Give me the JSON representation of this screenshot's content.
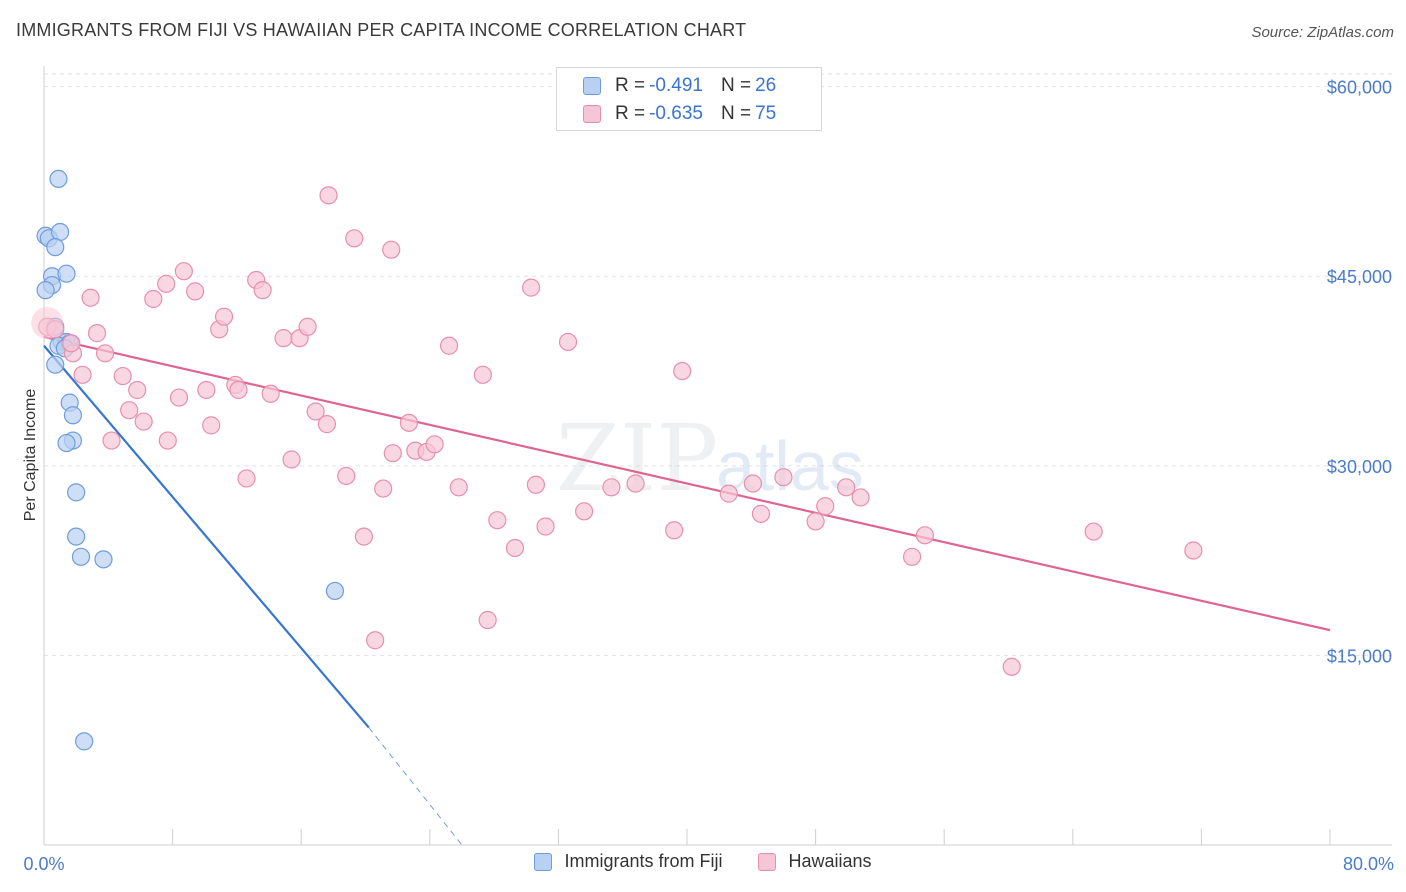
{
  "header": {
    "title": "IMMIGRANTS FROM FIJI VS HAWAIIAN PER CAPITA INCOME CORRELATION CHART",
    "source": "Source: ZipAtlas.com"
  },
  "legend_top": {
    "rows": [
      {
        "r_label": "R =",
        "r_value": "-0.491",
        "n_label": "N =",
        "n_value": "26"
      },
      {
        "r_label": "R =",
        "r_value": "-0.635",
        "n_label": "N =",
        "n_value": "75"
      }
    ]
  },
  "legend_bottom": {
    "items": [
      "Immigrants from Fiji",
      "Hawaiians"
    ]
  },
  "colors": {
    "fiji_fill": "#b8d0f2",
    "fiji_stroke": "#6f9ddc",
    "fiji_line": "#3676d1",
    "hawaii_fill": "#f7c6d6",
    "hawaii_stroke": "#e88fae",
    "hawaii_line": "#e0658e",
    "grid": "#e2e2e2",
    "tick_text": "#4a7cc9"
  },
  "chart_data": {
    "type": "scatter",
    "title": "IMMIGRANTS FROM FIJI VS HAWAIIAN PER CAPITA INCOME CORRELATION CHART",
    "xlabel": "",
    "ylabel": "Per Capita Income",
    "xlim": [
      0,
      80
    ],
    "ylim": [
      0,
      61000
    ],
    "x_tick_labels": [
      "0.0%",
      "80.0%"
    ],
    "y_ticks": [
      15000,
      30000,
      45000,
      60000
    ],
    "y_tick_labels": [
      "$15,000",
      "$30,000",
      "$45,000",
      "$60,000"
    ],
    "grid": true,
    "legend_position": "top-center",
    "watermark": "ZIPatlas",
    "series": [
      {
        "name": "Immigrants from Fiji",
        "r": -0.491,
        "n": 26,
        "points": [
          [
            0.9,
            52700
          ],
          [
            0.1,
            48200
          ],
          [
            0.3,
            48000
          ],
          [
            1.0,
            48500
          ],
          [
            0.7,
            47300
          ],
          [
            0.5,
            45000
          ],
          [
            1.4,
            45200
          ],
          [
            0.5,
            44300
          ],
          [
            0.1,
            43900
          ],
          [
            0.7,
            41000
          ],
          [
            1.1,
            39800
          ],
          [
            1.4,
            39800
          ],
          [
            0.9,
            39500
          ],
          [
            1.6,
            39700
          ],
          [
            1.3,
            39300
          ],
          [
            0.7,
            38000
          ],
          [
            1.6,
            35000
          ],
          [
            1.8,
            34000
          ],
          [
            1.8,
            32000
          ],
          [
            1.4,
            31800
          ],
          [
            2.0,
            27900
          ],
          [
            2.0,
            24400
          ],
          [
            2.3,
            22800
          ],
          [
            3.7,
            22600
          ],
          [
            18.1,
            20100
          ],
          [
            2.5,
            8200
          ]
        ],
        "trend": {
          "x": [
            0,
            20.2
          ],
          "y": [
            39500,
            9300
          ]
        },
        "trend_extension": {
          "x": [
            20.2,
            26.0
          ],
          "y": [
            9300,
            0
          ]
        }
      },
      {
        "name": "Hawaiians",
        "r": -0.635,
        "n": 75,
        "points": [
          [
            0.2,
            41000
          ],
          [
            0.7,
            40800
          ],
          [
            1.8,
            38900
          ],
          [
            1.7,
            39700
          ],
          [
            2.4,
            37200
          ],
          [
            3.3,
            40500
          ],
          [
            3.8,
            38900
          ],
          [
            2.9,
            43300
          ],
          [
            4.2,
            32000
          ],
          [
            4.9,
            37100
          ],
          [
            5.3,
            34400
          ],
          [
            5.8,
            36000
          ],
          [
            6.2,
            33500
          ],
          [
            6.8,
            43200
          ],
          [
            7.6,
            44400
          ],
          [
            7.7,
            32000
          ],
          [
            8.4,
            35400
          ],
          [
            8.7,
            45400
          ],
          [
            9.4,
            43800
          ],
          [
            10.1,
            36000
          ],
          [
            10.4,
            33200
          ],
          [
            10.9,
            40800
          ],
          [
            11.2,
            41800
          ],
          [
            11.9,
            36400
          ],
          [
            12.1,
            36000
          ],
          [
            12.6,
            29000
          ],
          [
            13.2,
            44700
          ],
          [
            13.6,
            43900
          ],
          [
            14.1,
            35700
          ],
          [
            14.9,
            40100
          ],
          [
            15.4,
            30500
          ],
          [
            15.9,
            40100
          ],
          [
            16.4,
            41000
          ],
          [
            16.9,
            34300
          ],
          [
            17.6,
            33300
          ],
          [
            17.7,
            51400
          ],
          [
            18.8,
            29200
          ],
          [
            19.3,
            48000
          ],
          [
            19.9,
            24400
          ],
          [
            20.6,
            16200
          ],
          [
            21.1,
            28200
          ],
          [
            21.6,
            47100
          ],
          [
            21.7,
            31000
          ],
          [
            22.7,
            33400
          ],
          [
            23.1,
            31200
          ],
          [
            23.8,
            31100
          ],
          [
            24.3,
            31700
          ],
          [
            25.2,
            39500
          ],
          [
            25.8,
            28300
          ],
          [
            27.3,
            37200
          ],
          [
            27.6,
            17800
          ],
          [
            28.2,
            25700
          ],
          [
            29.3,
            23500
          ],
          [
            30.3,
            44100
          ],
          [
            30.6,
            28500
          ],
          [
            31.2,
            25200
          ],
          [
            32.6,
            39800
          ],
          [
            33.6,
            26400
          ],
          [
            35.3,
            28300
          ],
          [
            36.8,
            28600
          ],
          [
            39.2,
            24900
          ],
          [
            39.7,
            37500
          ],
          [
            42.6,
            27800
          ],
          [
            44.1,
            28600
          ],
          [
            44.6,
            26200
          ],
          [
            46.0,
            29100
          ],
          [
            48.0,
            25600
          ],
          [
            48.6,
            26800
          ],
          [
            49.9,
            28300
          ],
          [
            50.8,
            27500
          ],
          [
            54.0,
            22800
          ],
          [
            54.8,
            24500
          ],
          [
            60.2,
            14100
          ],
          [
            65.3,
            24800
          ],
          [
            71.5,
            23300
          ]
        ],
        "trend": {
          "x": [
            0,
            80
          ],
          "y": [
            40200,
            17000
          ]
        }
      }
    ]
  }
}
